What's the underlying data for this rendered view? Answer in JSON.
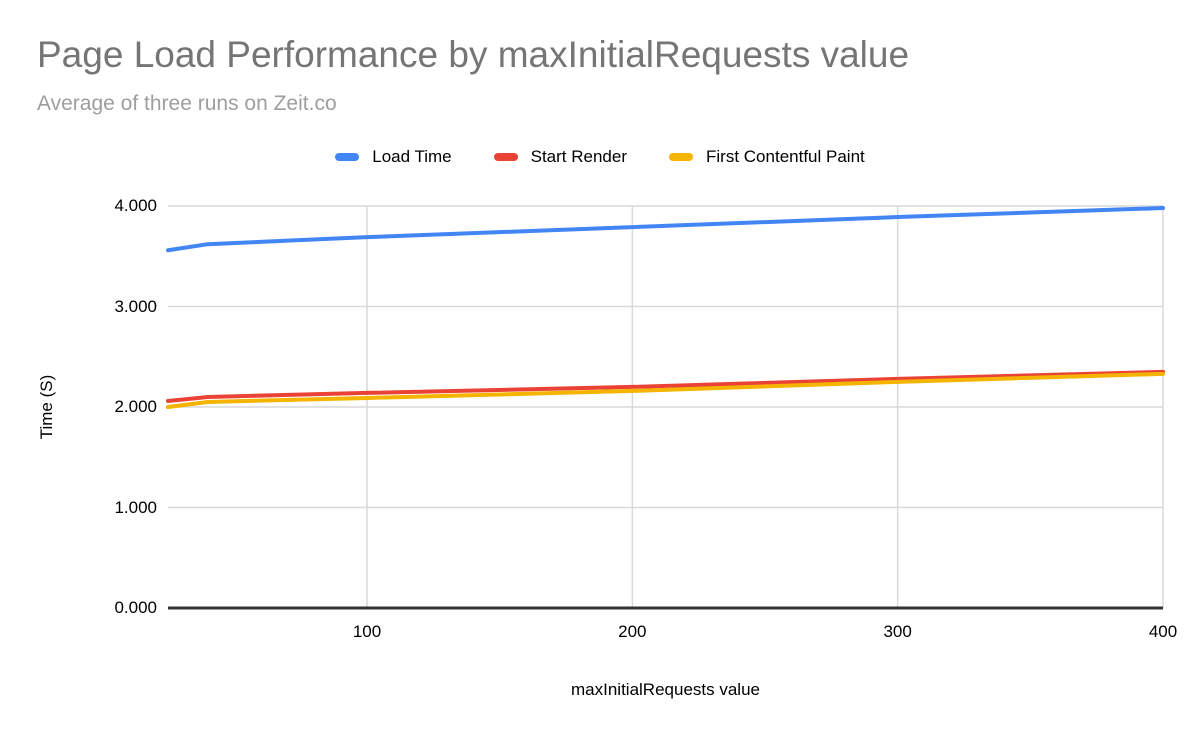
{
  "header": {
    "title": "Page Load Performance by maxInitialRequests value",
    "subtitle": "Average of three runs on Zeit.co"
  },
  "colors": {
    "title_text": "#757575",
    "subtitle_text": "#9e9e9e",
    "tick_text": "#000000",
    "gridline": "#d9d9d9",
    "axis_line": "#333333",
    "background": "#ffffff",
    "series_blue": "#4285F4",
    "series_red": "#EA4335",
    "series_yellow": "#F4B400"
  },
  "legend": {
    "position": "top-center",
    "items": [
      {
        "label": "Load Time",
        "color": "#4285F4"
      },
      {
        "label": "Start Render",
        "color": "#EA4335"
      },
      {
        "label": "First Contentful Paint",
        "color": "#F4B400"
      }
    ]
  },
  "chart_data": {
    "type": "line",
    "title": "Page Load Performance by maxInitialRequests value",
    "subtitle": "Average of three runs on Zeit.co",
    "xlabel": "maxInitialRequests value",
    "ylabel": "Time (S)",
    "x": [
      25,
      40,
      100,
      200,
      300,
      400
    ],
    "series": [
      {
        "name": "Load Time",
        "color": "#4285F4",
        "values": [
          3.56,
          3.62,
          3.69,
          3.79,
          3.89,
          3.98
        ]
      },
      {
        "name": "Start Render",
        "color": "#EA4335",
        "values": [
          2.06,
          2.1,
          2.14,
          2.2,
          2.28,
          2.35
        ]
      },
      {
        "name": "First Contentful Paint",
        "color": "#F4B400",
        "values": [
          2.0,
          2.05,
          2.09,
          2.16,
          2.25,
          2.33
        ]
      }
    ],
    "xlim": [
      25,
      400
    ],
    "ylim": [
      0,
      4
    ],
    "x_ticks": [
      100,
      200,
      300,
      400
    ],
    "y_ticks": [
      0,
      1,
      2,
      3,
      4
    ],
    "y_tick_labels": [
      "0.000",
      "1.000",
      "2.000",
      "3.000",
      "4.000"
    ],
    "x_tick_labels": [
      "100",
      "200",
      "300",
      "400"
    ],
    "grid": true,
    "legend_position": "top",
    "line_width": 4
  }
}
